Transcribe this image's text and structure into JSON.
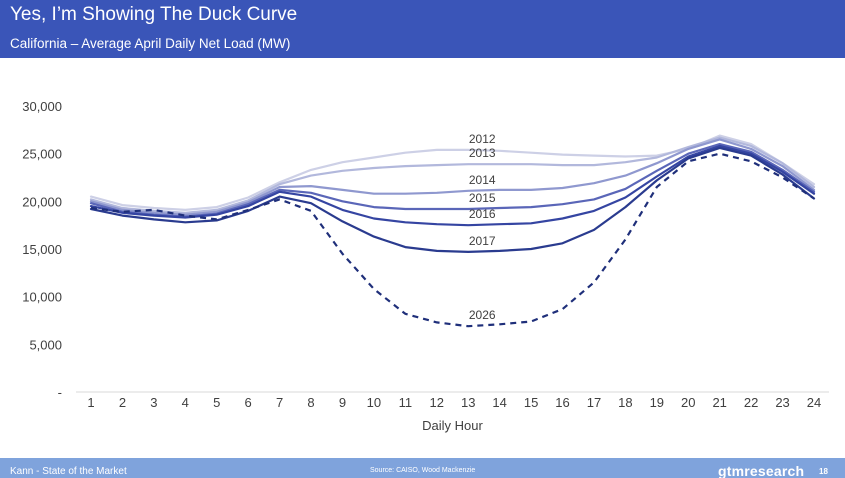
{
  "header": {
    "title": "Yes, I’m Showing The Duck Curve",
    "subtitle": "California – Average April Daily Net Load (MW)"
  },
  "footer": {
    "left_text": "Kann - State of the Market",
    "source": "Source: CAISO, Wood Mackenzie",
    "brand": "gtmresearch",
    "page": "18"
  },
  "chart_data": {
    "type": "line",
    "title": "",
    "xlabel": "Daily Hour",
    "ylabel": "",
    "x": [
      1,
      2,
      3,
      4,
      5,
      6,
      7,
      8,
      9,
      10,
      11,
      12,
      13,
      14,
      15,
      16,
      17,
      18,
      19,
      20,
      21,
      22,
      23,
      24
    ],
    "ylim": [
      0,
      30000
    ],
    "yticks": [
      0,
      5000,
      10000,
      15000,
      20000,
      25000,
      30000
    ],
    "ytick_labels": [
      "-",
      "5,000",
      "10,000",
      "15,000",
      "20,000",
      "25,000",
      "30,000"
    ],
    "xtick_labels": [
      "1",
      "2",
      "3",
      "4",
      "5",
      "6",
      "7",
      "8",
      "9",
      "10",
      "11",
      "12",
      "13",
      "14",
      "15",
      "16",
      "17",
      "18",
      "19",
      "20",
      "21",
      "22",
      "23",
      "24"
    ],
    "grid": false,
    "legend": "none",
    "series": [
      {
        "name": "2012",
        "color": "#cdd0e6",
        "dashed": false,
        "label_hour": 13,
        "values": [
          20500,
          19600,
          19300,
          19100,
          19400,
          20400,
          22000,
          23300,
          24100,
          24600,
          25100,
          25400,
          25400,
          25300,
          25100,
          24900,
          24800,
          24700,
          24800,
          25500,
          26900,
          26000,
          24000,
          21800
        ]
      },
      {
        "name": "2013",
        "color": "#b2b8dc",
        "dashed": false,
        "label_hour": 13,
        "values": [
          20200,
          19300,
          19000,
          18800,
          19100,
          20100,
          21800,
          22700,
          23200,
          23500,
          23700,
          23800,
          23900,
          23900,
          23900,
          23800,
          23800,
          24100,
          24600,
          25700,
          26700,
          25800,
          24000,
          21500
        ]
      },
      {
        "name": "2014",
        "color": "#8f98cf",
        "dashed": false,
        "label_hour": 13,
        "values": [
          20000,
          19100,
          18800,
          18600,
          18900,
          19900,
          21500,
          21600,
          21200,
          20800,
          20800,
          20900,
          21100,
          21200,
          21200,
          21400,
          21900,
          22700,
          24000,
          25500,
          26500,
          25500,
          23700,
          21200
        ]
      },
      {
        "name": "2015",
        "color": "#5a66b8",
        "dashed": false,
        "label_hour": 13,
        "values": [
          19800,
          18900,
          18600,
          18400,
          18700,
          19700,
          21200,
          20900,
          20000,
          19400,
          19200,
          19200,
          19200,
          19300,
          19400,
          19700,
          20200,
          21300,
          23200,
          25000,
          26000,
          25200,
          23300,
          21000
        ]
      },
      {
        "name": "2016",
        "color": "#3545a2",
        "dashed": false,
        "label_hour": 13,
        "values": [
          19500,
          18800,
          18500,
          18300,
          18600,
          19500,
          21000,
          20500,
          19100,
          18200,
          17800,
          17600,
          17500,
          17600,
          17700,
          18200,
          19000,
          20400,
          22600,
          24700,
          25800,
          25000,
          23100,
          20800
        ]
      },
      {
        "name": "2017",
        "color": "#2a3b8f",
        "dashed": false,
        "label_hour": 13,
        "values": [
          19200,
          18500,
          18100,
          17800,
          18000,
          19000,
          20500,
          19800,
          17900,
          16300,
          15200,
          14800,
          14700,
          14800,
          15000,
          15600,
          17000,
          19400,
          22200,
          24500,
          25600,
          24800,
          22800,
          20300
        ]
      },
      {
        "name": "2026",
        "color": "#1f2f7a",
        "dashed": true,
        "label_hour": 13,
        "values": [
          19300,
          18900,
          19100,
          18500,
          18100,
          19100,
          20200,
          19000,
          14500,
          10800,
          8200,
          7300,
          6900,
          7100,
          7400,
          8700,
          11500,
          16000,
          21500,
          24200,
          25000,
          24200,
          22500,
          20300
        ]
      }
    ]
  }
}
